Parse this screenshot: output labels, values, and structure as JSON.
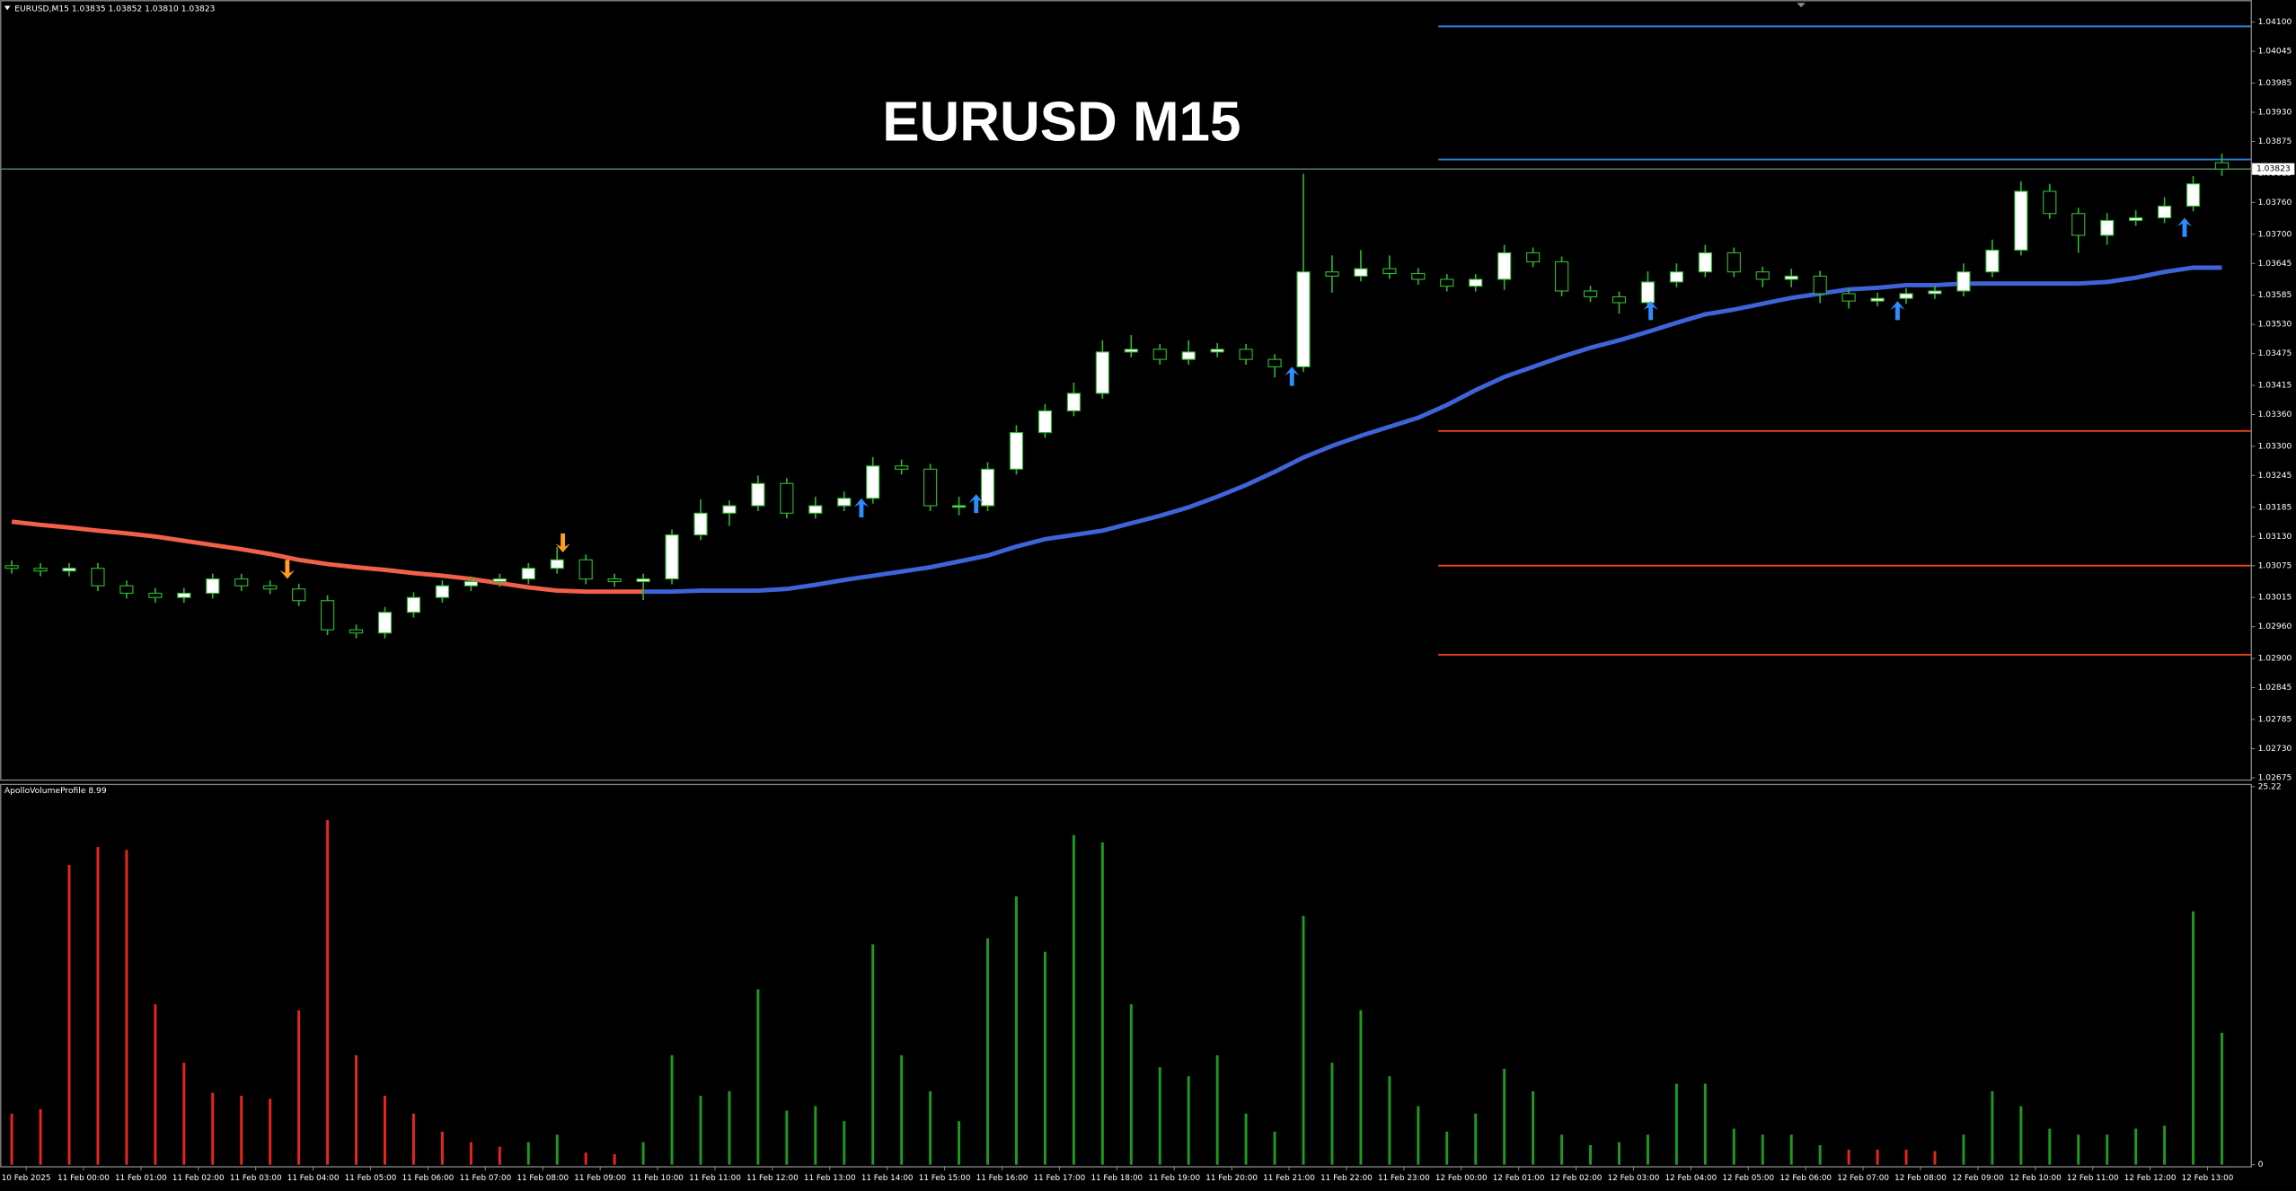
{
  "chart_data": [
    {
      "type": "candlestick",
      "title": "EURUSD M15",
      "header": "EURUSD,M15  1.03835 1.03852 1.03810 1.03823",
      "x": [
        0,
        1,
        2,
        3,
        4,
        5,
        6,
        7,
        8,
        9,
        10,
        11,
        12,
        13,
        14,
        15,
        16,
        17,
        18,
        19,
        20,
        21,
        22,
        23,
        24,
        25,
        26,
        27,
        28,
        29,
        30,
        31,
        32,
        33,
        34,
        35,
        36,
        37,
        38,
        39,
        40,
        41,
        42,
        43,
        44,
        45,
        46,
        47,
        48,
        49,
        50,
        51,
        52,
        53,
        54,
        55,
        56,
        57,
        58,
        59,
        60,
        61,
        62,
        63,
        64,
        65,
        66,
        67,
        68,
        69,
        70,
        71,
        72,
        73,
        74,
        75,
        76,
        77
      ],
      "open": [
        1.03075,
        1.0307,
        1.03065,
        1.0307,
        1.03037,
        1.03023,
        1.03015,
        1.03023,
        1.0305,
        1.03037,
        1.03031,
        1.03009,
        1.02954,
        1.02948,
        1.02987,
        1.03015,
        1.03037,
        1.03045,
        1.0305,
        1.0307,
        1.03086,
        1.0305,
        1.03045,
        1.0305,
        1.03133,
        1.03174,
        1.03188,
        1.0323,
        1.03174,
        1.03188,
        1.03202,
        1.03263,
        1.03257,
        1.03188,
        1.03188,
        1.03257,
        1.03326,
        1.03367,
        1.034,
        1.03478,
        1.03483,
        1.03464,
        1.03478,
        1.03483,
        1.03464,
        1.0345,
        1.03629,
        1.03621,
        1.03635,
        1.03626,
        1.03615,
        1.03602,
        1.03615,
        1.03665,
        1.03648,
        1.03593,
        1.03582,
        1.03571,
        1.0361,
        1.03629,
        1.03665,
        1.03629,
        1.03615,
        1.03621,
        1.03588,
        1.03574,
        1.03579,
        1.03588,
        1.03593,
        1.03629,
        1.0367,
        1.03781,
        1.03739,
        1.03698,
        1.03726,
        1.03731,
        1.03753,
        1.03835
      ],
      "high": [
        1.03085,
        1.0308,
        1.0308,
        1.0308,
        1.03047,
        1.03033,
        1.03033,
        1.0306,
        1.0306,
        1.03047,
        1.03041,
        1.03019,
        1.02964,
        1.02997,
        1.03025,
        1.03047,
        1.03055,
        1.0306,
        1.0308,
        1.0311,
        1.03096,
        1.0306,
        1.0306,
        1.03143,
        1.032,
        1.03198,
        1.03245,
        1.0324,
        1.03205,
        1.03215,
        1.0328,
        1.03275,
        1.03267,
        1.03205,
        1.0327,
        1.0334,
        1.0338,
        1.0342,
        1.035,
        1.0351,
        1.03493,
        1.035,
        1.03495,
        1.03493,
        1.03474,
        1.03814,
        1.0366,
        1.0367,
        1.0366,
        1.03636,
        1.03625,
        1.03625,
        1.0368,
        1.03675,
        1.03658,
        1.03603,
        1.03592,
        1.0363,
        1.03645,
        1.0368,
        1.03675,
        1.03639,
        1.03635,
        1.03631,
        1.03598,
        1.0359,
        1.03598,
        1.03603,
        1.03645,
        1.0369,
        1.038,
        1.03795,
        1.0375,
        1.0374,
        1.03745,
        1.0377,
        1.0381,
        1.03852
      ],
      "low": [
        1.0306,
        1.03055,
        1.03055,
        1.03027,
        1.03013,
        1.03005,
        1.03005,
        1.03013,
        1.03027,
        1.03021,
        1.02999,
        1.02944,
        1.02938,
        1.02938,
        1.02977,
        1.03005,
        1.03027,
        1.03035,
        1.0304,
        1.0306,
        1.0304,
        1.03035,
        1.0301,
        1.0304,
        1.03123,
        1.0315,
        1.03178,
        1.03164,
        1.03164,
        1.03178,
        1.03192,
        1.03247,
        1.03178,
        1.0317,
        1.03178,
        1.03247,
        1.03316,
        1.03357,
        1.0339,
        1.03468,
        1.03454,
        1.03454,
        1.03468,
        1.03454,
        1.0343,
        1.0344,
        1.0359,
        1.03611,
        1.03616,
        1.03605,
        1.03592,
        1.03592,
        1.03595,
        1.03638,
        1.03583,
        1.03572,
        1.0355,
        1.03561,
        1.036,
        1.03619,
        1.03619,
        1.036,
        1.036,
        1.0357,
        1.0356,
        1.03564,
        1.03569,
        1.03578,
        1.03583,
        1.03619,
        1.0366,
        1.03729,
        1.03665,
        1.0368,
        1.03716,
        1.03721,
        1.03743,
        1.0381
      ],
      "close": [
        1.0307,
        1.03065,
        1.0307,
        1.03037,
        1.03023,
        1.03015,
        1.03023,
        1.0305,
        1.03037,
        1.03031,
        1.03009,
        1.02954,
        1.02948,
        1.02987,
        1.03015,
        1.03037,
        1.03045,
        1.0305,
        1.0307,
        1.03086,
        1.0305,
        1.03045,
        1.0305,
        1.03133,
        1.03174,
        1.03188,
        1.0323,
        1.03174,
        1.03188,
        1.03202,
        1.03263,
        1.03257,
        1.03188,
        1.03188,
        1.03257,
        1.03326,
        1.03367,
        1.034,
        1.03478,
        1.03483,
        1.03464,
        1.03478,
        1.03483,
        1.03464,
        1.0345,
        1.03629,
        1.03621,
        1.03635,
        1.03626,
        1.03615,
        1.03602,
        1.03615,
        1.03665,
        1.03648,
        1.03593,
        1.03582,
        1.03571,
        1.0361,
        1.03629,
        1.03665,
        1.03629,
        1.03615,
        1.03621,
        1.03588,
        1.03574,
        1.03579,
        1.03588,
        1.03593,
        1.03629,
        1.0367,
        1.03781,
        1.03739,
        1.03698,
        1.03726,
        1.03731,
        1.03753,
        1.03795,
        1.03823
      ],
      "colors": {
        "bull": "#ffffff",
        "bear": "#000000",
        "wick": "#2fb52f"
      },
      "lines": [
        {
          "color": "#f0604a",
          "values": [
            1.03158,
            1.03152,
            1.03147,
            1.03141,
            1.03136,
            1.0313,
            1.03122,
            1.03114,
            1.03106,
            1.03097,
            1.03086,
            1.03078,
            1.03072,
            1.03067,
            1.03061,
            1.03056,
            1.0305,
            1.03042,
            1.03034,
            1.03028,
            1.03026,
            1.03026,
            1.03026,
            null,
            null,
            null,
            null,
            null,
            null,
            null,
            null,
            null,
            null,
            null,
            null,
            null,
            null,
            null,
            null,
            null,
            null,
            null,
            null,
            null,
            null,
            null,
            null,
            null,
            null,
            null,
            null,
            null,
            null,
            null,
            null,
            null,
            null,
            null,
            null,
            null,
            null,
            null,
            null,
            null,
            null,
            null,
            null,
            null,
            null,
            null,
            null,
            null,
            null,
            null,
            null,
            null,
            null,
            null
          ]
        },
        {
          "color": "#3f63d8",
          "values": [
            null,
            null,
            null,
            null,
            null,
            null,
            null,
            null,
            null,
            null,
            null,
            null,
            null,
            null,
            null,
            null,
            null,
            null,
            null,
            null,
            null,
            null,
            1.03026,
            1.03026,
            1.03028,
            1.03028,
            1.03028,
            1.03031,
            1.03039,
            1.03048,
            1.03056,
            1.03064,
            1.03072,
            1.03083,
            1.03094,
            1.03111,
            1.03125,
            1.03133,
            1.03141,
            1.03155,
            1.03169,
            1.03185,
            1.03205,
            1.03227,
            1.03252,
            1.03279,
            1.03301,
            1.0332,
            1.03337,
            1.03354,
            1.03378,
            1.03406,
            1.03431,
            1.0345,
            1.03469,
            1.03486,
            1.035,
            1.03516,
            1.03533,
            1.03549,
            1.03558,
            1.03569,
            1.0358,
            1.03588,
            1.03596,
            1.03599,
            1.03604,
            1.03604,
            1.03607,
            1.03607,
            1.03607,
            1.03607,
            1.03607,
            1.0361,
            1.03618,
            1.03629,
            1.03637,
            1.03637
          ]
        }
      ],
      "levels_start": 49.7,
      "levels": [
        {
          "value": 1.04092,
          "color": "#2f7fe0"
        },
        {
          "value": 1.03841,
          "color": "#2f7fe0"
        },
        {
          "value": 1.03329,
          "color": "#e8461c"
        },
        {
          "value": 1.03075,
          "color": "#e8461c"
        },
        {
          "value": 1.02907,
          "color": "#e8461c"
        }
      ],
      "signals": [
        {
          "x": 9.6,
          "y": 1.0305,
          "direction": "down",
          "color": "#ffa020"
        },
        {
          "x": 19.2,
          "y": 1.031,
          "direction": "down",
          "color": "#ffa020"
        },
        {
          "x": 29.6,
          "y": 1.03202,
          "direction": "up",
          "color": "#2f8cff"
        },
        {
          "x": 33.6,
          "y": 1.0321,
          "direction": "up",
          "color": "#2f8cff"
        },
        {
          "x": 44.6,
          "y": 1.0345,
          "direction": "up",
          "color": "#2f8cff"
        },
        {
          "x": 57.1,
          "y": 1.03574,
          "direction": "up",
          "color": "#2f8cff"
        },
        {
          "x": 65.7,
          "y": 1.03574,
          "direction": "up",
          "color": "#2f8cff"
        },
        {
          "x": 75.7,
          "y": 1.03731,
          "direction": "up",
          "color": "#2f8cff"
        }
      ],
      "bid": {
        "value": 1.03823,
        "label": "1.03823",
        "color": "#5d8a70"
      },
      "xlim": [
        -0.41,
        78.0
      ],
      "ylim": [
        1.02672,
        1.04139
      ],
      "yticks": [
        {
          "value": 1.041,
          "label": "1.04100"
        },
        1.04045,
        1.03985,
        {
          "value": 1.0393,
          "label": "1.03930"
        },
        1.03875,
        1.03815,
        {
          "value": 1.0376,
          "label": "1.03760"
        },
        {
          "value": 1.037,
          "label": "1.03700"
        },
        1.03645,
        1.03585,
        {
          "value": 1.0353,
          "label": "1.03530"
        },
        1.03475,
        1.03415,
        {
          "value": 1.0336,
          "label": "1.03360"
        },
        {
          "value": 1.033,
          "label": "1.03300"
        },
        1.03245,
        1.03185,
        {
          "value": 1.0313,
          "label": "1.03130"
        },
        1.03075,
        1.03015,
        {
          "value": 1.0296,
          "label": "1.02960"
        },
        {
          "value": 1.029,
          "label": "1.02900"
        },
        1.02845,
        1.02785,
        {
          "value": 1.0273,
          "label": "1.02730"
        },
        1.02675
      ]
    },
    {
      "type": "bar",
      "title": "ApolloVolumeProfile 8.99",
      "x": [
        0,
        1,
        2,
        3,
        4,
        5,
        6,
        7,
        8,
        9,
        10,
        11,
        12,
        13,
        14,
        15,
        16,
        17,
        18,
        19,
        20,
        21,
        22,
        23,
        24,
        25,
        26,
        27,
        28,
        29,
        30,
        31,
        32,
        33,
        34,
        35,
        36,
        37,
        38,
        39,
        40,
        41,
        42,
        43,
        44,
        45,
        46,
        47,
        48,
        49,
        50,
        51,
        52,
        53,
        54,
        55,
        56,
        57,
        58,
        59,
        60,
        61,
        62,
        63,
        64,
        65,
        66,
        67,
        68,
        69,
        70,
        71,
        72,
        73,
        74,
        75,
        76,
        77
      ],
      "values": [
        3.4,
        3.7,
        20.0,
        21.2,
        21.0,
        10.7,
        6.8,
        4.8,
        4.6,
        4.4,
        10.3,
        23.0,
        7.3,
        4.6,
        3.4,
        2.2,
        1.5,
        1.2,
        1.5,
        2.0,
        0.8,
        0.7,
        1.5,
        7.3,
        4.6,
        4.9,
        11.7,
        3.6,
        3.9,
        2.9,
        14.7,
        7.3,
        4.9,
        2.9,
        15.1,
        17.9,
        14.2,
        22.0,
        21.5,
        10.7,
        6.5,
        5.9,
        7.3,
        3.4,
        2.2,
        16.6,
        6.8,
        10.3,
        5.9,
        3.9,
        2.2,
        3.4,
        6.4,
        4.9,
        2.0,
        1.3,
        1.5,
        2.0,
        5.4,
        5.4,
        2.4,
        2.0,
        2.0,
        1.3,
        1.0,
        1.0,
        1.0,
        0.9,
        2.0,
        4.9,
        3.9,
        2.4,
        2.0,
        2.0,
        2.4,
        2.6,
        16.9,
        8.8
      ],
      "colors": [
        "#e8261c",
        "#e8261c",
        "#e8261c",
        "#e8261c",
        "#e8261c",
        "#e8261c",
        "#e8261c",
        "#e8261c",
        "#e8261c",
        "#e8261c",
        "#e8261c",
        "#e8261c",
        "#e8261c",
        "#e8261c",
        "#e8261c",
        "#e8261c",
        "#e8261c",
        "#e8261c",
        "#1f9a1f",
        "#1f9a1f",
        "#e8261c",
        "#e8261c",
        "#1f9a1f",
        "#1f9a1f",
        "#1f9a1f",
        "#1f9a1f",
        "#1f9a1f",
        "#1f9a1f",
        "#1f9a1f",
        "#1f9a1f",
        "#1f9a1f",
        "#1f9a1f",
        "#1f9a1f",
        "#1f9a1f",
        "#1f9a1f",
        "#1f9a1f",
        "#1f9a1f",
        "#1f9a1f",
        "#1f9a1f",
        "#1f9a1f",
        "#1f9a1f",
        "#1f9a1f",
        "#1f9a1f",
        "#1f9a1f",
        "#1f9a1f",
        "#1f9a1f",
        "#1f9a1f",
        "#1f9a1f",
        "#1f9a1f",
        "#1f9a1f",
        "#1f9a1f",
        "#1f9a1f",
        "#1f9a1f",
        "#1f9a1f",
        "#1f9a1f",
        "#1f9a1f",
        "#1f9a1f",
        "#1f9a1f",
        "#1f9a1f",
        "#1f9a1f",
        "#1f9a1f",
        "#1f9a1f",
        "#1f9a1f",
        "#1f9a1f",
        "#e8261c",
        "#e8261c",
        "#e8261c",
        "#e8261c",
        "#1f9a1f",
        "#1f9a1f",
        "#1f9a1f",
        "#1f9a1f",
        "#1f9a1f",
        "#1f9a1f",
        "#1f9a1f",
        "#1f9a1f",
        "#1f9a1f",
        "#1f9a1f"
      ],
      "xlim": [
        -0.41,
        78.0
      ],
      "ylim": [
        0,
        25.22
      ],
      "yticks": [
        25.22,
        0
      ],
      "xticks": [
        {
          "value": 0.5,
          "label": "10 Feb 2025"
        },
        {
          "value": 2.5,
          "label": "11 Feb 00:00"
        },
        {
          "value": 4.5,
          "label": "11 Feb 01:00"
        },
        {
          "value": 6.5,
          "label": "11 Feb 02:00"
        },
        {
          "value": 8.5,
          "label": "11 Feb 03:00"
        },
        {
          "value": 10.5,
          "label": "11 Feb 04:00"
        },
        {
          "value": 12.5,
          "label": "11 Feb 05:00"
        },
        {
          "value": 14.5,
          "label": "11 Feb 06:00"
        },
        {
          "value": 16.5,
          "label": "11 Feb 07:00"
        },
        {
          "value": 18.5,
          "label": "11 Feb 08:00"
        },
        {
          "value": 20.5,
          "label": "11 Feb 09:00"
        },
        {
          "value": 22.5,
          "label": "11 Feb 10:00"
        },
        {
          "value": 24.5,
          "label": "11 Feb 11:00"
        },
        {
          "value": 26.5,
          "label": "11 Feb 12:00"
        },
        {
          "value": 28.5,
          "label": "11 Feb 13:00"
        },
        {
          "value": 30.5,
          "label": "11 Feb 14:00"
        },
        {
          "value": 32.5,
          "label": "11 Feb 15:00"
        },
        {
          "value": 34.5,
          "label": "11 Feb 16:00"
        },
        {
          "value": 36.5,
          "label": "11 Feb 17:00"
        },
        {
          "value": 38.5,
          "label": "11 Feb 18:00"
        },
        {
          "value": 40.5,
          "label": "11 Feb 19:00"
        },
        {
          "value": 42.5,
          "label": "11 Feb 20:00"
        },
        {
          "value": 44.5,
          "label": "11 Feb 21:00"
        },
        {
          "value": 46.5,
          "label": "11 Feb 22:00"
        },
        {
          "value": 48.5,
          "label": "11 Feb 23:00"
        },
        {
          "value": 50.5,
          "label": "12 Feb 00:00"
        },
        {
          "value": 52.5,
          "label": "12 Feb 01:00"
        },
        {
          "value": 54.5,
          "label": "12 Feb 02:00"
        },
        {
          "value": 56.5,
          "label": "12 Feb 03:00"
        },
        {
          "value": 58.5,
          "label": "12 Feb 04:00"
        },
        {
          "value": 60.5,
          "label": "12 Feb 05:00"
        },
        {
          "value": 62.5,
          "label": "12 Feb 06:00"
        },
        {
          "value": 64.5,
          "label": "12 Feb 07:00"
        },
        {
          "value": 66.5,
          "label": "12 Feb 08:00"
        },
        {
          "value": 68.5,
          "label": "12 Feb 09:00"
        },
        {
          "value": 70.5,
          "label": "12 Feb 10:00"
        },
        {
          "value": 72.5,
          "label": "12 Feb 11:00"
        },
        {
          "value": 74.5,
          "label": "12 Feb 12:00"
        },
        {
          "value": 76.5,
          "label": "12 Feb 13:00"
        }
      ]
    }
  ]
}
